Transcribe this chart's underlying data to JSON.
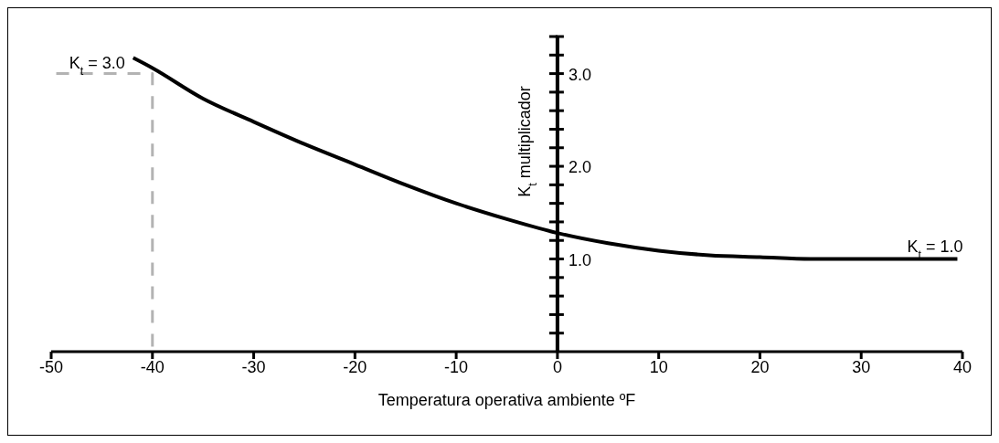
{
  "chart_data": {
    "type": "line",
    "xlabel": "Temperatura operativa ambiente ºF",
    "ylabel": "K$_{t}$ multiplicador",
    "series": [
      {
        "color": "#000000",
        "line_style": "solid",
        "x": [
          -41.9,
          -40,
          -35,
          -30,
          -25,
          -20,
          -15,
          -10,
          -5,
          0,
          5,
          10,
          15,
          20,
          25,
          30,
          35,
          39.5
        ],
        "values": [
          3.17,
          3.06,
          2.73,
          2.48,
          2.24,
          2.02,
          1.8,
          1.6,
          1.43,
          1.28,
          1.17,
          1.09,
          1.04,
          1.02,
          1.0,
          1.0,
          1.0,
          1.0
        ]
      },
      {
        "color": "#b3b3b3",
        "line_style": "dashed",
        "x": [
          -49.5,
          -40,
          -40
        ],
        "values": [
          3.0,
          3.0,
          0
        ]
      }
    ],
    "annotations": [
      {
        "text": "K$_{t}$ = 3.0",
        "x": -40,
        "y": 3.0
      },
      {
        "text": "K$_{t}$ = 1.0",
        "x": 39.5,
        "y": 1.0
      }
    ],
    "xlim": [
      -50,
      40
    ],
    "xticks": [
      -50,
      -40,
      -30,
      -20,
      -10,
      0,
      10,
      20,
      30,
      40
    ],
    "ylim": [
      0,
      3.4
    ],
    "yticks": [
      {
        "value": 0.2,
        "label": null
      },
      {
        "value": 0.4,
        "label": null
      },
      {
        "value": 0.6,
        "label": null
      },
      {
        "value": 0.8,
        "label": null
      },
      {
        "value": 1.0,
        "label": "1.0"
      },
      {
        "value": 1.2,
        "label": null
      },
      {
        "value": 1.4,
        "label": null
      },
      {
        "value": 1.6,
        "label": null
      },
      {
        "value": 1.8,
        "label": null
      },
      {
        "value": 2.0,
        "label": "2.0"
      },
      {
        "value": 2.2,
        "label": null
      },
      {
        "value": 2.4,
        "label": null
      },
      {
        "value": 2.6,
        "label": null
      },
      {
        "value": 2.8,
        "label": null
      },
      {
        "value": 3.0,
        "label": "3.0"
      },
      {
        "value": 3.2,
        "label": null
      },
      {
        "value": 3.4,
        "label": null
      }
    ],
    "grid": false,
    "marker": "none"
  }
}
